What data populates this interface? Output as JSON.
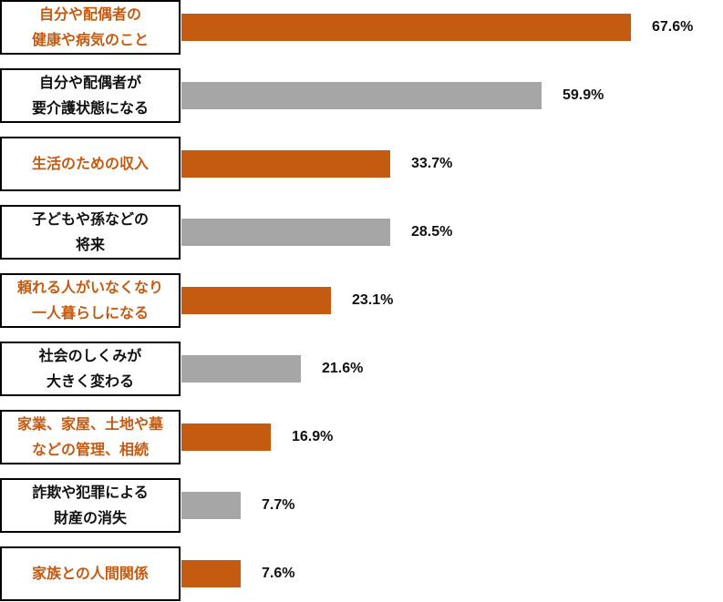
{
  "colors": {
    "orange": "#C55A11",
    "gray": "#A6A6A6",
    "text_dark": "#111111"
  },
  "chart_data": {
    "type": "bar",
    "orientation": "horizontal",
    "title": "",
    "xlabel": "",
    "ylabel": "",
    "unit": "%",
    "xlim": [
      0,
      100
    ],
    "grid": false,
    "legend": null,
    "categories": [
      "自分や配偶者の健康や病気のこと",
      "自分や配偶者が要介護状態になる",
      "生活のための収入",
      "子どもや孫などの将来",
      "頼れる人がいなくなり一人暮らしになる",
      "社会のしくみが大きく変わる",
      "家業、家屋、土地や墓などの管理、相続",
      "詐欺や犯罪による財産の消失",
      "家族との人間関係"
    ],
    "values": [
      67.6,
      59.9,
      33.7,
      28.5,
      23.1,
      21.6,
      16.9,
      7.7,
      7.6
    ],
    "value_labels": [
      "67.6%",
      "59.9%",
      "33.7%",
      "28.5%",
      "23.1%",
      "21.6%",
      "16.9%",
      "7.7%",
      "7.6%"
    ],
    "bar_colors": [
      "orange",
      "gray",
      "orange",
      "gray",
      "orange",
      "gray",
      "orange",
      "gray",
      "orange"
    ]
  },
  "rows": [
    {
      "lines": [
        "自分や配偶者の",
        "健康や病気のこと"
      ],
      "color": "orange",
      "bar_end": 692,
      "label": "67.6%"
    },
    {
      "lines": [
        "自分や配偶者が",
        "要介護状態になる"
      ],
      "color": "gray",
      "bar_end": 594,
      "label": "59.9%"
    },
    {
      "lines": [
        "生活のための収入"
      ],
      "color": "orange",
      "bar_end": 428,
      "label": "33.7%"
    },
    {
      "lines": [
        "子どもや孫などの",
        "将来"
      ],
      "color": "gray",
      "bar_end": 428,
      "label": "28.5%"
    },
    {
      "lines": [
        "頼れる人がいなくなり",
        "一人暮らしになる"
      ],
      "color": "orange",
      "bar_end": 363,
      "label": "23.1%"
    },
    {
      "lines": [
        "社会のしくみが",
        "大きく変わる"
      ],
      "color": "gray",
      "bar_end": 330,
      "label": "21.6%"
    },
    {
      "lines": [
        "家業、家屋、土地や墓",
        "などの管理、相続"
      ],
      "color": "orange",
      "bar_end": 297,
      "label": "16.9%"
    },
    {
      "lines": [
        "詐欺や犯罪による",
        "財産の消失"
      ],
      "color": "gray",
      "bar_end": 264,
      "label": "7.7%"
    },
    {
      "lines": [
        "家族との人間関係"
      ],
      "color": "orange",
      "bar_end": 264,
      "label": "7.6%"
    }
  ]
}
